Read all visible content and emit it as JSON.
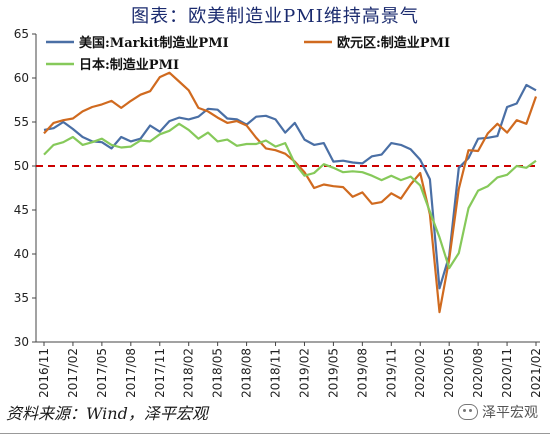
{
  "header": {
    "title": "图表：欧美制造业PMI维持高景气"
  },
  "footer": {
    "source": "资料来源：Wind，泽平宏观",
    "brand": "泽平宏观"
  },
  "chart_data": {
    "type": "line",
    "title": "图表：欧美制造业PMI维持高景气",
    "ylim": [
      30,
      65
    ],
    "yticks": [
      30,
      35,
      40,
      45,
      50,
      55,
      60,
      65
    ],
    "reference_line": {
      "y": 50,
      "color": "#cc0000",
      "style": "dashed"
    },
    "x_tick_labels": [
      "2016/11",
      "2017/02",
      "2017/05",
      "2017/08",
      "2017/11",
      "2018/02",
      "2018/05",
      "2018/08",
      "2018/11",
      "2019/02",
      "2019/05",
      "2019/08",
      "2019/11",
      "2020/02",
      "2020/05",
      "2020/08",
      "2020/11",
      "2021/02"
    ],
    "x": [
      "2016/11",
      "2016/12",
      "2017/01",
      "2017/02",
      "2017/03",
      "2017/04",
      "2017/05",
      "2017/06",
      "2017/07",
      "2017/08",
      "2017/09",
      "2017/10",
      "2017/11",
      "2017/12",
      "2018/01",
      "2018/02",
      "2018/03",
      "2018/04",
      "2018/05",
      "2018/06",
      "2018/07",
      "2018/08",
      "2018/09",
      "2018/10",
      "2018/11",
      "2018/12",
      "2019/01",
      "2019/02",
      "2019/03",
      "2019/04",
      "2019/05",
      "2019/06",
      "2019/07",
      "2019/08",
      "2019/09",
      "2019/10",
      "2019/11",
      "2019/12",
      "2020/01",
      "2020/02",
      "2020/03",
      "2020/04",
      "2020/05",
      "2020/06",
      "2020/07",
      "2020/08",
      "2020/09",
      "2020/10",
      "2020/11",
      "2020/12",
      "2021/01",
      "2021/02"
    ],
    "legend_position": "top",
    "series": [
      {
        "name": "美国:Markit制造业PMI",
        "color": "#4a6fa5",
        "values": [
          54.1,
          54.3,
          55.0,
          54.2,
          53.3,
          52.8,
          52.7,
          52.0,
          53.3,
          52.8,
          53.1,
          54.6,
          53.9,
          55.1,
          55.5,
          55.3,
          55.6,
          56.5,
          56.4,
          55.4,
          55.3,
          54.7,
          55.6,
          55.7,
          55.3,
          53.8,
          54.9,
          53.0,
          52.4,
          52.6,
          50.5,
          50.6,
          50.4,
          50.3,
          51.1,
          51.3,
          52.6,
          52.4,
          51.9,
          50.7,
          48.5,
          36.1,
          39.8,
          49.8,
          50.9,
          53.1,
          53.2,
          53.4,
          56.7,
          57.1,
          59.2,
          58.6
        ]
      },
      {
        "name": "欧元区:制造业PMI",
        "color": "#d06a1f",
        "values": [
          53.7,
          54.9,
          55.2,
          55.4,
          56.2,
          56.7,
          57.0,
          57.4,
          56.6,
          57.4,
          58.1,
          58.5,
          60.1,
          60.6,
          59.6,
          58.6,
          56.6,
          56.2,
          55.5,
          54.9,
          55.1,
          54.6,
          53.2,
          52.0,
          51.8,
          51.4,
          50.5,
          49.3,
          47.5,
          47.9,
          47.7,
          47.6,
          46.5,
          47.0,
          45.7,
          45.9,
          46.9,
          46.3,
          47.9,
          49.2,
          44.5,
          33.4,
          39.4,
          47.4,
          51.8,
          51.7,
          53.7,
          54.8,
          53.8,
          55.2,
          54.8,
          57.9
        ]
      },
      {
        "name": "日本:制造业PMI",
        "color": "#86c95a",
        "values": [
          51.3,
          52.4,
          52.7,
          53.3,
          52.4,
          52.7,
          53.1,
          52.4,
          52.1,
          52.2,
          52.9,
          52.8,
          53.6,
          54.0,
          54.8,
          54.1,
          53.1,
          53.8,
          52.8,
          53.0,
          52.3,
          52.5,
          52.5,
          52.9,
          52.2,
          52.6,
          50.3,
          48.9,
          49.2,
          50.2,
          49.8,
          49.3,
          49.4,
          49.3,
          48.9,
          48.4,
          48.9,
          48.4,
          48.8,
          47.8,
          44.8,
          41.9,
          38.4,
          40.1,
          45.2,
          47.2,
          47.7,
          48.7,
          49.0,
          50.0,
          49.8,
          50.6
        ]
      }
    ]
  }
}
